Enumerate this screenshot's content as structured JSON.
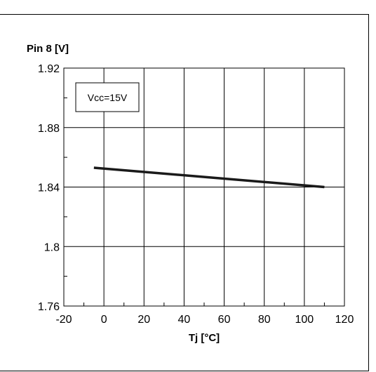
{
  "chart_data": {
    "type": "line",
    "xlabel": "Tj [°C]",
    "ylabel": "Pin 8 [V]",
    "annotation": "Vcc=15V",
    "xlim": [
      -20,
      120
    ],
    "ylim": [
      1.76,
      1.92
    ],
    "x_ticks": [
      "-20",
      "0",
      "20",
      "40",
      "60",
      "80",
      "100",
      "120"
    ],
    "y_ticks": [
      "1.76",
      "1.8",
      "1.84",
      "1.88",
      "1.92"
    ],
    "grid": true,
    "series": [
      {
        "x": [
          -5,
          110
        ],
        "y": [
          1.853,
          1.84
        ]
      }
    ]
  }
}
